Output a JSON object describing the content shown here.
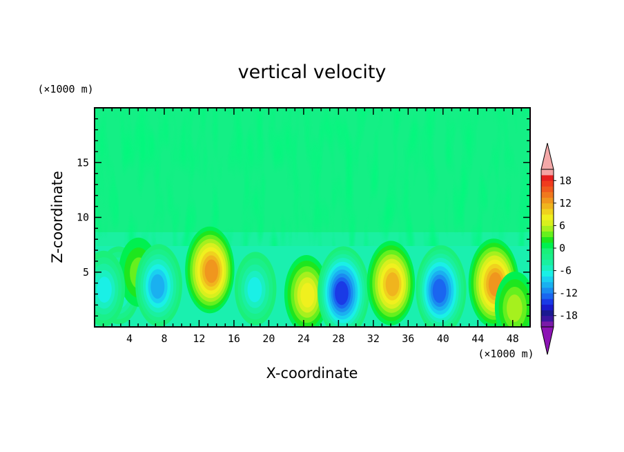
{
  "chart_data": {
    "type": "heatmap",
    "title": "vertical velocity",
    "xlabel": "X-coordinate",
    "ylabel": "Z-coordinate",
    "x_unit": "(×1000 m)",
    "y_unit": "(×1000 m)",
    "xlim": [
      0,
      50
    ],
    "ylim": [
      0,
      20
    ],
    "x_ticks": [
      4,
      8,
      12,
      16,
      20,
      24,
      28,
      32,
      36,
      40,
      44,
      48
    ],
    "y_ticks": [
      5,
      10,
      15
    ],
    "colorbar": {
      "levels": [
        -21,
        -19.5,
        -18,
        -16.5,
        -15,
        -13.5,
        -12,
        -10.5,
        -9,
        -7.5,
        -6,
        -4.5,
        -3,
        -1.5,
        0,
        1.5,
        3,
        4.5,
        6,
        7.5,
        9,
        10.5,
        12,
        13.5,
        15,
        16.5,
        18,
        19.5,
        21
      ],
      "tick_labels": [
        "18",
        "12",
        "6",
        "0",
        "-6",
        "-12",
        "-18"
      ],
      "tick_values": [
        18,
        12,
        6,
        0,
        -6,
        -12,
        -18
      ],
      "colors": [
        "#7a1aa8",
        "#3a16a0",
        "#1a1a90",
        "#1a1acc",
        "#1a3ae6",
        "#1a66f0",
        "#1a8cf0",
        "#1ab0f0",
        "#1ad0f0",
        "#1af0e6",
        "#1af0c0",
        "#1af0a0",
        "#1af08a",
        "#1af07a",
        "#00f050",
        "#1ee61e",
        "#66f01e",
        "#a6f01e",
        "#d8f01e",
        "#f0f01e",
        "#f0d21e",
        "#f0b41e",
        "#f0961e",
        "#f0781e",
        "#f05a1e",
        "#f03c1e",
        "#e61e1e",
        "#f4a2a2"
      ],
      "over_color": "#f4a8a8",
      "under_color": "#8c14b4"
    },
    "features": [
      {
        "x": 2.8,
        "z": 3.8,
        "value": -9
      },
      {
        "x": 5.0,
        "z": 5.0,
        "value": 5
      },
      {
        "x": 7.4,
        "z": 3.8,
        "value": -11
      },
      {
        "x": 13.2,
        "z": 5.2,
        "value": 13
      },
      {
        "x": 18.5,
        "z": 3.5,
        "value": -7
      },
      {
        "x": 24.3,
        "z": 3.0,
        "value": 9
      },
      {
        "x": 28.6,
        "z": 3.2,
        "value": -15
      },
      {
        "x": 34.0,
        "z": 4.0,
        "value": 12
      },
      {
        "x": 39.8,
        "z": 3.4,
        "value": -14
      },
      {
        "x": 45.8,
        "z": 4.0,
        "value": 14
      },
      {
        "x": 48.3,
        "z": 1.8,
        "value": 6
      },
      {
        "x": 1.0,
        "z": 3.5,
        "value": -8
      }
    ]
  }
}
